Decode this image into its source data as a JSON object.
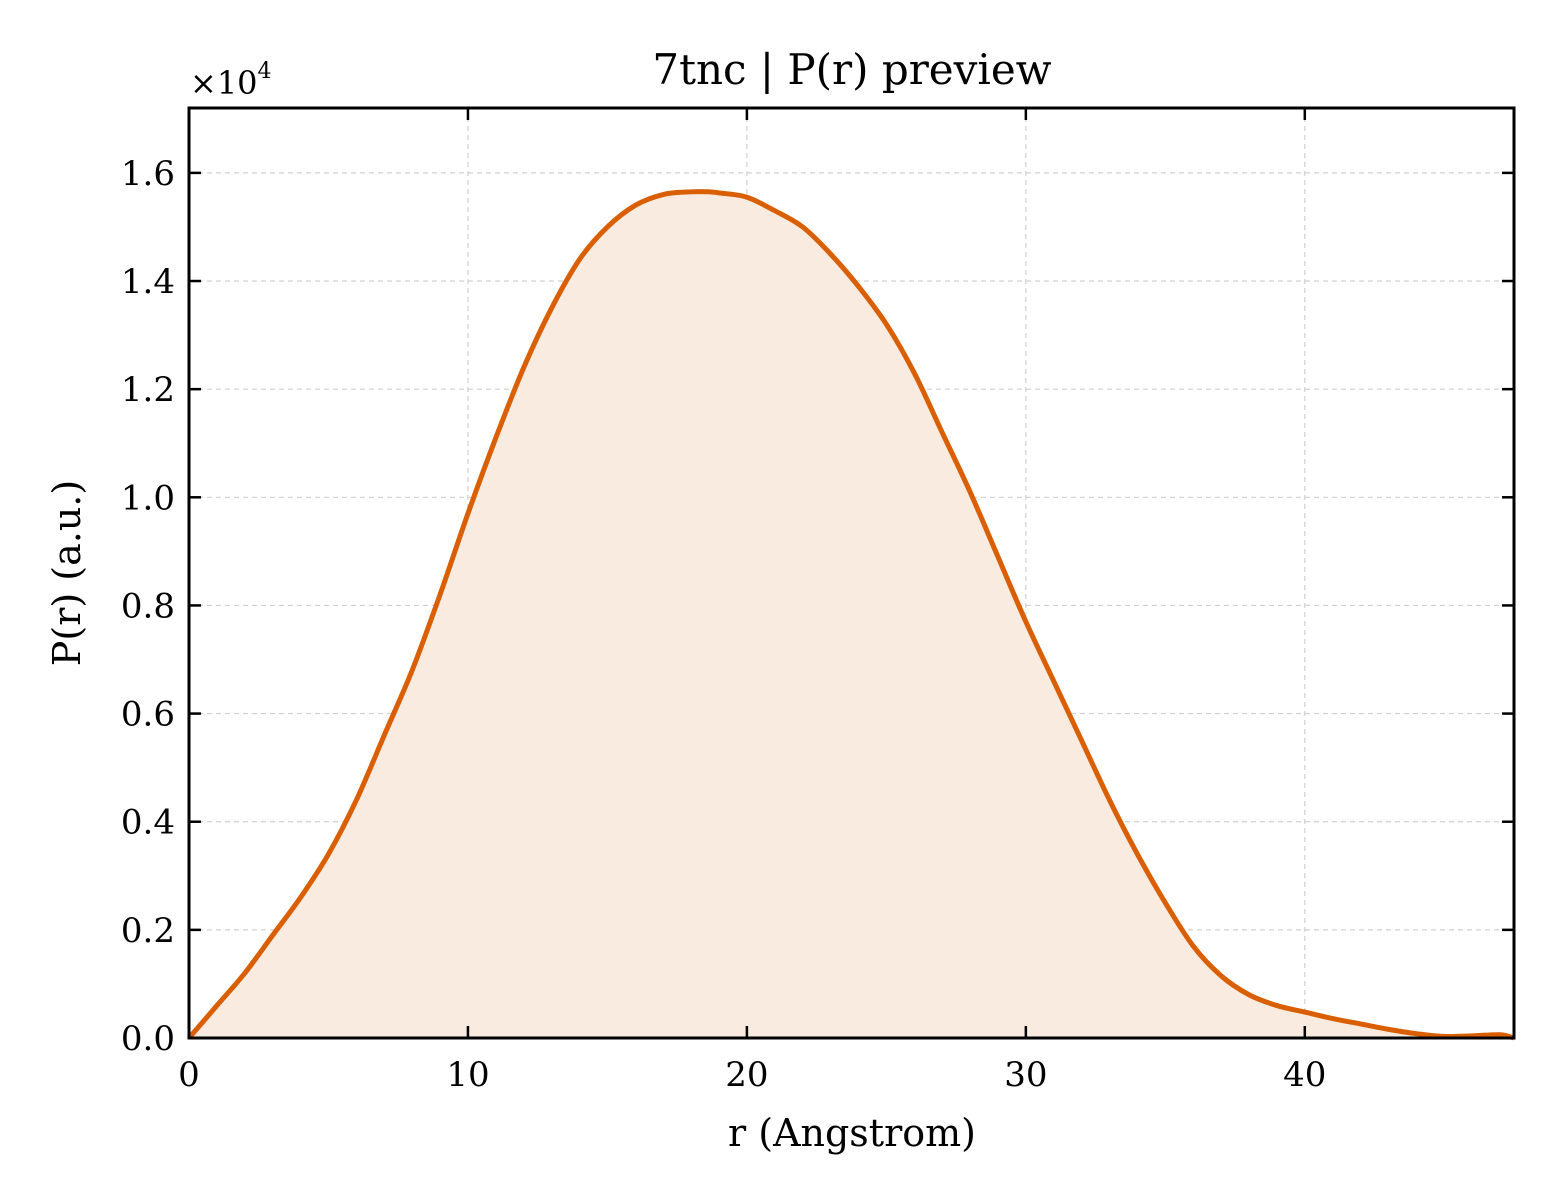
{
  "chart_data": {
    "type": "area",
    "title": "7tnc | P(r) preview",
    "xlabel": "r (Angstrom)",
    "ylabel": "P(r) (a.u.)",
    "y_multiplier": "×10",
    "y_multiplier_exp": "4",
    "xlim": [
      0,
      47.5
    ],
    "ylim": [
      0,
      1.72
    ],
    "xticks": [
      0,
      10,
      20,
      30,
      40
    ],
    "xtick_labels": [
      "0",
      "10",
      "20",
      "30",
      "40"
    ],
    "yticks": [
      0.0,
      0.2,
      0.4,
      0.6,
      0.8,
      1.0,
      1.2,
      1.4,
      1.6
    ],
    "ytick_labels": [
      "0.0",
      "0.2",
      "0.4",
      "0.6",
      "0.8",
      "1.0",
      "1.2",
      "1.4",
      "1.6"
    ],
    "grid": true,
    "line_color": "#d95f02",
    "fill_color": "#f9ebe0",
    "series": [
      {
        "x": [
          0,
          1,
          2,
          3,
          4,
          5,
          6,
          7,
          8,
          9,
          10,
          11,
          12,
          13,
          14,
          15,
          16,
          17,
          18,
          18.6,
          19,
          20,
          21,
          22,
          23,
          24,
          25,
          26,
          27,
          28,
          29,
          30,
          31,
          32,
          33,
          34,
          35,
          36,
          37,
          38,
          39,
          40,
          41,
          42,
          43,
          44,
          45,
          46,
          47,
          47.5
        ],
        "y": [
          0.0,
          0.06,
          0.12,
          0.19,
          0.26,
          0.34,
          0.44,
          0.56,
          0.68,
          0.82,
          0.97,
          1.11,
          1.24,
          1.35,
          1.44,
          1.5,
          1.54,
          1.56,
          1.565,
          1.565,
          1.563,
          1.555,
          1.53,
          1.5,
          1.45,
          1.39,
          1.32,
          1.23,
          1.12,
          1.01,
          0.89,
          0.77,
          0.66,
          0.55,
          0.44,
          0.34,
          0.25,
          0.17,
          0.115,
          0.08,
          0.06,
          0.048,
          0.036,
          0.026,
          0.016,
          0.008,
          0.003,
          0.004,
          0.006,
          0.0
        ]
      }
    ]
  }
}
